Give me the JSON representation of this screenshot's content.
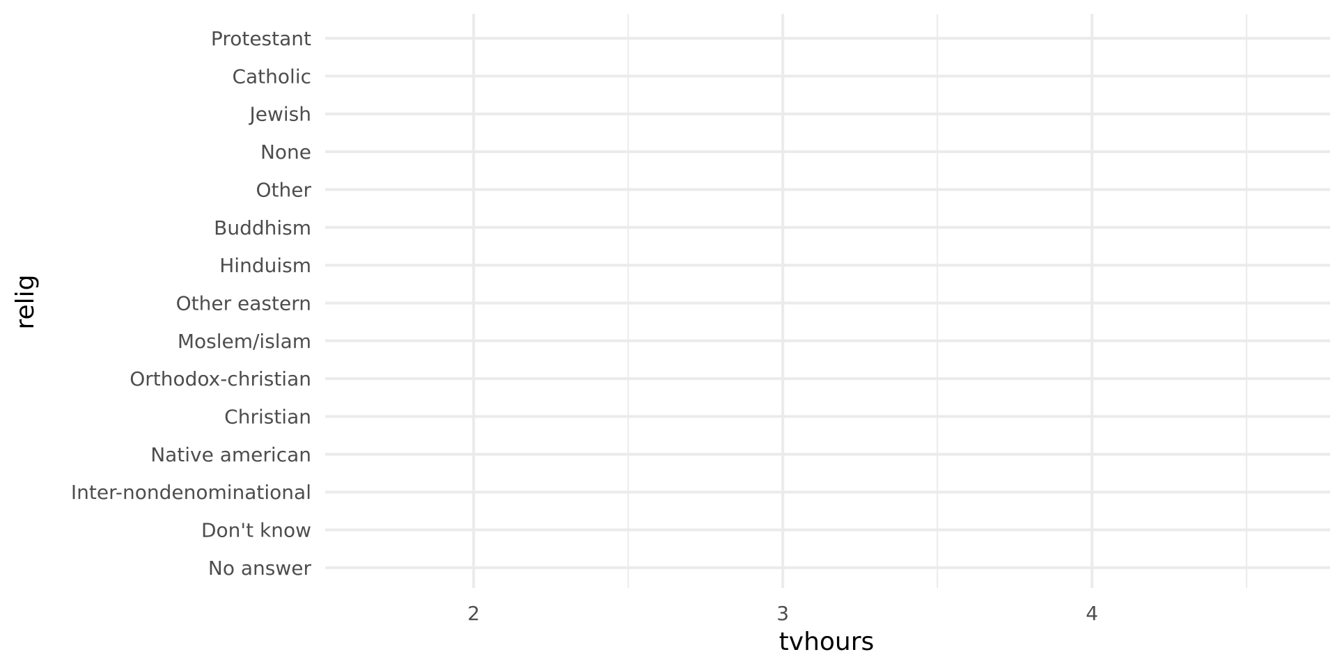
{
  "chart_data": {
    "type": "scatter",
    "title": "",
    "xlabel": "tvhours",
    "ylabel": "relig",
    "xlim": [
      1.52,
      4.77
    ],
    "x_major_ticks": [
      2,
      3,
      4
    ],
    "x_minor_ticks": [
      2.5,
      3.5,
      4.5
    ],
    "categories": [
      "Protestant",
      "Catholic",
      "Jewish",
      "None",
      "Other",
      "Buddhism",
      "Hinduism",
      "Other eastern",
      "Moslem/islam",
      "Orthodox-christian",
      "Christian",
      "Native american",
      "Inter-nondenominational",
      "Don't know",
      "No answer"
    ],
    "points": [],
    "grid": true,
    "legend": "none",
    "colors": {
      "gridline": "#ebebeb",
      "tick_text": "#4d4d4d",
      "axis_title": "#000000",
      "background": "#ffffff"
    }
  }
}
